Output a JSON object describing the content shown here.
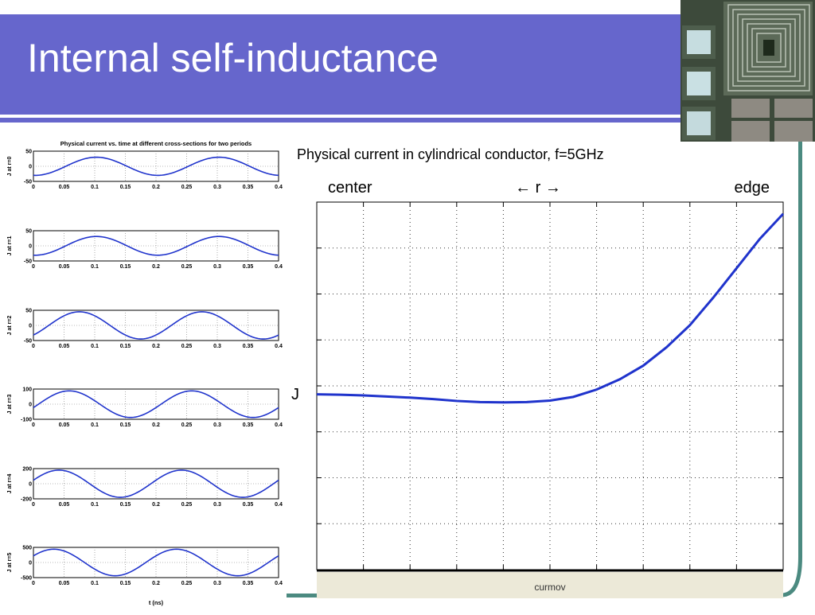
{
  "slide": {
    "title": "Internal self-inductance"
  },
  "colors": {
    "title_bar": "#6666cc",
    "curve": "#1f33cc",
    "frame": "#4b8a80",
    "status_bar": "#ece9d8"
  },
  "chart_data": [
    {
      "type": "line",
      "title": "Physical current vs. time at different cross-sections for two periods",
      "xlabel": "t (ns)",
      "x_ticks": [
        "0",
        "0.05",
        "0.1",
        "0.15",
        "0.2",
        "0.25",
        "0.3",
        "0.35",
        "0.4"
      ],
      "xlim": [
        0,
        0.4
      ],
      "grid": true,
      "subplots": [
        {
          "ylabel": "J at r=0",
          "y_ticks": [
            "50",
            "0",
            "-50"
          ],
          "ylim": [
            -50,
            50
          ],
          "amplitude": 30,
          "phase_deg": -95
        },
        {
          "ylabel": "J at r=1",
          "y_ticks": [
            "50",
            "0",
            "-50"
          ],
          "ylim": [
            -50,
            50
          ],
          "amplitude": 31,
          "phase_deg": -95
        },
        {
          "ylabel": "J at r=2",
          "y_ticks": [
            "50",
            "0",
            "-50"
          ],
          "ylim": [
            -50,
            50
          ],
          "amplitude": 45,
          "phase_deg": -45
        },
        {
          "ylabel": "J at r=3",
          "y_ticks": [
            "100",
            "0",
            "-100"
          ],
          "ylim": [
            -100,
            100
          ],
          "amplitude": 88,
          "phase_deg": -15
        },
        {
          "ylabel": "J at r=4",
          "y_ticks": [
            "200",
            "0",
            "-200"
          ],
          "ylim": [
            -200,
            200
          ],
          "amplitude": 180,
          "phase_deg": 15
        },
        {
          "ylabel": "J at r=5",
          "y_ticks": [
            "500",
            "0",
            "-500"
          ],
          "ylim": [
            -500,
            500
          ],
          "amplitude": 440,
          "phase_deg": 30
        }
      ]
    },
    {
      "type": "line",
      "title": "Physical current in cylindrical conductor, f=5GHz",
      "left_label": "center",
      "middle_label": "← r →",
      "right_label": "edge",
      "ylabel": "J",
      "xlim": [
        0,
        1
      ],
      "ylim": [
        0,
        1
      ],
      "grid": true,
      "series": [
        {
          "x": [
            0,
            0.05,
            0.1,
            0.15,
            0.2,
            0.25,
            0.3,
            0.35,
            0.4,
            0.45,
            0.5,
            0.55,
            0.6,
            0.65,
            0.7,
            0.75,
            0.8,
            0.85,
            0.9,
            0.95,
            1.0
          ],
          "y": [
            0.477,
            0.476,
            0.474,
            0.471,
            0.468,
            0.464,
            0.459,
            0.456,
            0.455,
            0.456,
            0.46,
            0.47,
            0.49,
            0.518,
            0.555,
            0.605,
            0.665,
            0.74,
            0.82,
            0.9,
            0.968
          ]
        }
      ]
    }
  ],
  "status_bar": {
    "label": "curmov"
  }
}
